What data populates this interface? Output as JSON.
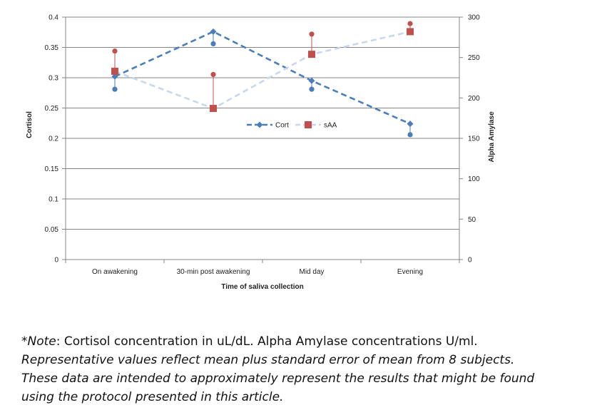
{
  "chart_data": {
    "type": "line",
    "title": "",
    "categories": [
      "On awakening",
      "30-min post awakening",
      "Mid day",
      "Evening"
    ],
    "xlabel": "Time of saliva collection",
    "ylabel": "Cortisol",
    "y2label": "Alpha Amylase",
    "ylim": [
      0,
      0.4
    ],
    "y2lim": [
      0,
      300
    ],
    "yticks": [
      0,
      0.05,
      0.1,
      0.15,
      0.2,
      0.25,
      0.3,
      0.35,
      0.4
    ],
    "yticklabels": [
      "0",
      "0.05",
      "0.1",
      "0.15",
      "0.2",
      "0.25",
      "0.3",
      "0.35",
      "0.4"
    ],
    "y2ticks": [
      0,
      50,
      100,
      150,
      200,
      250,
      300
    ],
    "y2ticklabels": [
      "0",
      "50",
      "100",
      "150",
      "200",
      "250",
      "300"
    ],
    "legend_position": "center-right",
    "series": [
      {
        "name": "Cort",
        "axis": "left",
        "color": "#4a7ebb",
        "marker": "diamond",
        "dash": "dashed",
        "values": [
          0.302,
          0.376,
          0.295,
          0.224
        ],
        "error_ends": [
          0.281,
          0.356,
          0.281,
          0.206
        ]
      },
      {
        "name": "sAA",
        "axis": "right",
        "color": "#c8d8ec",
        "marker_color": "#c0504d",
        "marker": "square",
        "dash": "dashed",
        "values": [
          233,
          187,
          254,
          282
        ],
        "error_ends": [
          258,
          229,
          279,
          292
        ]
      }
    ]
  },
  "note": {
    "line1_label": "*Note",
    "line1_rest": ": Cortisol concentration in uL/dL. Alpha Amylase concentrations U/ml.",
    "line2": "Representative values reflect mean plus standard error of mean from 8 subjects.",
    "line3": "These data are intended to approximately represent the results that might be found",
    "line4": "using the protocol presented in this article."
  }
}
